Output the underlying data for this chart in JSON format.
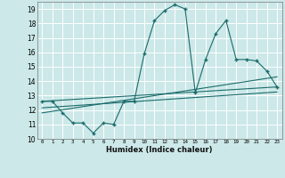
{
  "title": "",
  "xlabel": "Humidex (Indice chaleur)",
  "xlim": [
    -0.5,
    23.5
  ],
  "ylim": [
    10,
    19.5
  ],
  "yticks": [
    10,
    11,
    12,
    13,
    14,
    15,
    16,
    17,
    18,
    19
  ],
  "xticks": [
    0,
    1,
    2,
    3,
    4,
    5,
    6,
    7,
    8,
    9,
    10,
    11,
    12,
    13,
    14,
    15,
    16,
    17,
    18,
    19,
    20,
    21,
    22,
    23
  ],
  "bg_color": "#cce8e8",
  "grid_color": "#ffffff",
  "line_color": "#1a6b6b",
  "main_line": {
    "x": [
      0,
      1,
      2,
      3,
      4,
      5,
      6,
      7,
      8,
      9,
      10,
      11,
      12,
      13,
      14,
      15,
      16,
      17,
      18,
      19,
      20,
      21,
      22,
      23
    ],
    "y": [
      12.6,
      12.6,
      11.8,
      11.1,
      11.1,
      10.4,
      11.1,
      11.0,
      12.6,
      12.6,
      15.9,
      18.2,
      18.9,
      19.3,
      19.0,
      13.2,
      15.5,
      17.3,
      18.2,
      15.5,
      15.5,
      15.4,
      14.7,
      13.6
    ]
  },
  "trend_lines": [
    {
      "x": [
        0,
        23
      ],
      "y": [
        12.6,
        13.6
      ]
    },
    {
      "x": [
        0,
        23
      ],
      "y": [
        12.15,
        13.25
      ]
    },
    {
      "x": [
        0,
        23
      ],
      "y": [
        11.8,
        14.3
      ]
    }
  ]
}
